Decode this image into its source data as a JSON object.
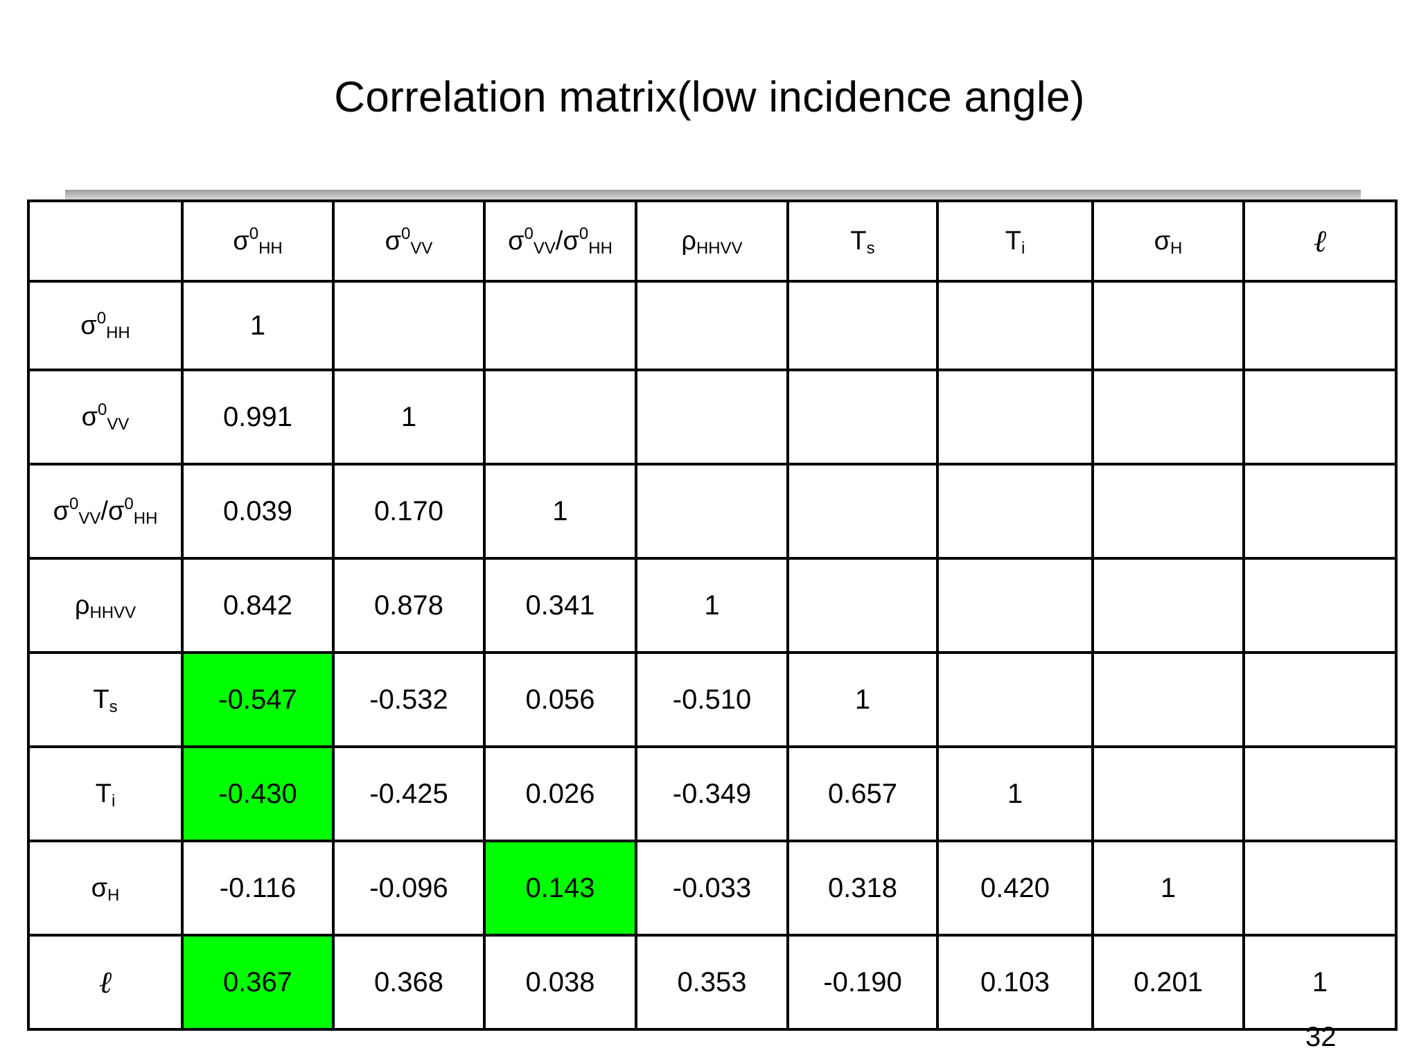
{
  "title": "Correlation matrix(low incidence angle)",
  "page_number": "32",
  "highlight_color": "#00ff00",
  "variables": [
    {
      "id": "s0hh",
      "base": "σ",
      "sup": "0",
      "sub": "HH"
    },
    {
      "id": "s0vv",
      "base": "σ",
      "sup": "0",
      "sub": "VV"
    },
    {
      "id": "ratio",
      "base": "σ",
      "sup": "0",
      "sub": "VV",
      "sep": "/",
      "base2": "σ",
      "sup2": "0",
      "sub2": "HH"
    },
    {
      "id": "rho",
      "base": "ρ",
      "sub": "HHVV"
    },
    {
      "id": "ts",
      "base": "T",
      "sub": "s"
    },
    {
      "id": "ti",
      "base": "T",
      "sub": "i"
    },
    {
      "id": "sh",
      "base": "σ",
      "sub": "H"
    },
    {
      "id": "ell",
      "base": "ℓ",
      "italic": true
    }
  ],
  "rows": [
    {
      "values": [
        "1"
      ],
      "highlight": []
    },
    {
      "values": [
        "0.991",
        "1"
      ],
      "highlight": []
    },
    {
      "values": [
        "0.039",
        "0.170",
        "1"
      ],
      "highlight": []
    },
    {
      "values": [
        "0.842",
        "0.878",
        "0.341",
        "1"
      ],
      "highlight": []
    },
    {
      "values": [
        "-0.547",
        "-0.532",
        "0.056",
        "-0.510",
        "1"
      ],
      "highlight": [
        0
      ]
    },
    {
      "values": [
        "-0.430",
        "-0.425",
        "0.026",
        "-0.349",
        "0.657",
        "1"
      ],
      "highlight": [
        0
      ]
    },
    {
      "values": [
        "-0.116",
        "-0.096",
        "0.143",
        "-0.033",
        "0.318",
        "0.420",
        "1"
      ],
      "highlight": [
        2
      ]
    },
    {
      "values": [
        "0.367",
        "0.368",
        "0.038",
        "0.353",
        "-0.190",
        "0.103",
        "0.201",
        "1"
      ],
      "highlight": [
        0
      ]
    }
  ]
}
